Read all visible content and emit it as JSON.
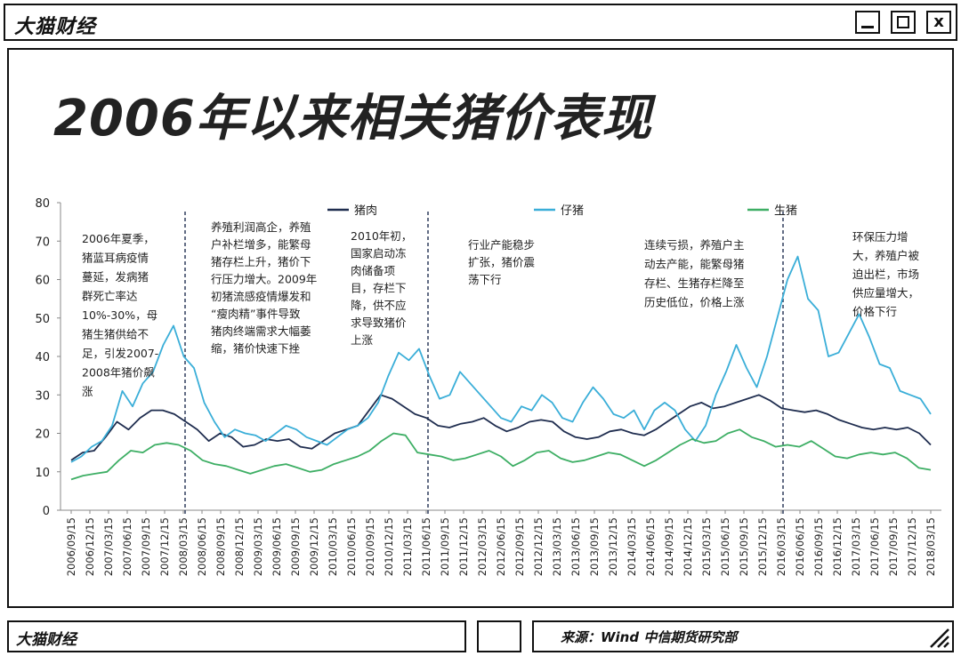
{
  "window": {
    "brand": "大猫财经",
    "buttons": {
      "min": "",
      "max": "",
      "close": "x"
    }
  },
  "footer": {
    "brand": "大猫财经",
    "source": "来源：Wind 中信期货研究部"
  },
  "chart_data": {
    "type": "line",
    "title": "2006年以来相关猪价表现",
    "ylim": [
      0,
      80
    ],
    "yticks": [
      0,
      10,
      20,
      30,
      40,
      50,
      60,
      70,
      80
    ],
    "x_tick_labels": [
      "2006/09/15",
      "2006/12/15",
      "2007/03/15",
      "2007/06/15",
      "2007/09/15",
      "2007/12/15",
      "2008/03/15",
      "2008/06/15",
      "2008/09/15",
      "2008/12/15",
      "2009/03/15",
      "2009/06/15",
      "2009/09/15",
      "2009/12/15",
      "2010/03/15",
      "2010/06/15",
      "2010/09/15",
      "2010/12/15",
      "2011/03/15",
      "2011/06/15",
      "2011/09/15",
      "2011/12/15",
      "2012/03/15",
      "2012/06/15",
      "2012/09/15",
      "2012/12/15",
      "2013/03/15",
      "2013/06/15",
      "2013/09/15",
      "2013/12/15",
      "2014/03/15",
      "2014/06/15",
      "2014/09/15",
      "2014/12/15",
      "2015/03/15",
      "2015/06/15",
      "2015/09/15",
      "2015/12/15",
      "2016/03/15",
      "2016/06/15",
      "2016/09/15",
      "2016/12/15",
      "2017/03/15",
      "2017/06/15",
      "2017/09/15",
      "2017/12/15",
      "2018/03/15"
    ],
    "legend": [
      "猪肉",
      "仔猪",
      "生猪"
    ],
    "series": [
      {
        "name": "猪肉",
        "color": "#1f2d4f",
        "values": [
          [
            0,
            13
          ],
          [
            1,
            15
          ],
          [
            2,
            15.5
          ],
          [
            3,
            19
          ],
          [
            4,
            23
          ],
          [
            5,
            21
          ],
          [
            6,
            24
          ],
          [
            7,
            26
          ],
          [
            8,
            26
          ],
          [
            9,
            25
          ],
          [
            10,
            23
          ],
          [
            11,
            21
          ],
          [
            12,
            18
          ],
          [
            13,
            20
          ],
          [
            14,
            19
          ],
          [
            15,
            16.5
          ],
          [
            16,
            17
          ],
          [
            17,
            18.5
          ],
          [
            18,
            18
          ],
          [
            19,
            18.5
          ],
          [
            20,
            16.5
          ],
          [
            21,
            16
          ],
          [
            22,
            18
          ],
          [
            23,
            20
          ],
          [
            24,
            21
          ],
          [
            25,
            22
          ],
          [
            26,
            26
          ],
          [
            27,
            30
          ],
          [
            28,
            29
          ],
          [
            29,
            27
          ],
          [
            30,
            25
          ],
          [
            31,
            24
          ],
          [
            32,
            22
          ],
          [
            33,
            21.5
          ],
          [
            34,
            22.5
          ],
          [
            35,
            23
          ],
          [
            36,
            24
          ],
          [
            37,
            22
          ],
          [
            38,
            20.5
          ],
          [
            39,
            21.5
          ],
          [
            40,
            23
          ],
          [
            41,
            23.5
          ],
          [
            42,
            23
          ],
          [
            43,
            20.5
          ],
          [
            44,
            19
          ],
          [
            45,
            18.5
          ],
          [
            46,
            19
          ],
          [
            47,
            20.5
          ],
          [
            48,
            21
          ],
          [
            49,
            20
          ],
          [
            50,
            19.5
          ],
          [
            51,
            21
          ],
          [
            52,
            23
          ],
          [
            53,
            25
          ],
          [
            54,
            27
          ],
          [
            55,
            28
          ],
          [
            56,
            26.5
          ],
          [
            57,
            27
          ],
          [
            58,
            28
          ],
          [
            59,
            29
          ],
          [
            60,
            30
          ],
          [
            61,
            28.5
          ],
          [
            62,
            26.5
          ],
          [
            63,
            26
          ],
          [
            64,
            25.5
          ],
          [
            65,
            26
          ],
          [
            66,
            25
          ],
          [
            67,
            23.5
          ],
          [
            68,
            22.5
          ],
          [
            69,
            21.5
          ],
          [
            70,
            21
          ],
          [
            71,
            21.5
          ],
          [
            72,
            21
          ],
          [
            73,
            21.5
          ],
          [
            74,
            20
          ],
          [
            75,
            17
          ]
        ]
      },
      {
        "name": "仔猪",
        "color": "#3aaed8",
        "values": [
          [
            0,
            12.5
          ],
          [
            1,
            14
          ],
          [
            2,
            16.5
          ],
          [
            3,
            18
          ],
          [
            4,
            22
          ],
          [
            5,
            31
          ],
          [
            6,
            27
          ],
          [
            7,
            33
          ],
          [
            8,
            36
          ],
          [
            9,
            43
          ],
          [
            10,
            48
          ],
          [
            11,
            40
          ],
          [
            12,
            37
          ],
          [
            13,
            28
          ],
          [
            14,
            23
          ],
          [
            15,
            19
          ],
          [
            16,
            21
          ],
          [
            17,
            20
          ],
          [
            18,
            19.5
          ],
          [
            19,
            18
          ],
          [
            20,
            20
          ],
          [
            21,
            22
          ],
          [
            22,
            21
          ],
          [
            23,
            19
          ],
          [
            24,
            18
          ],
          [
            25,
            17
          ],
          [
            26,
            19
          ],
          [
            27,
            21
          ],
          [
            28,
            22
          ],
          [
            29,
            24
          ],
          [
            30,
            28
          ],
          [
            31,
            35
          ],
          [
            32,
            41
          ],
          [
            33,
            39
          ],
          [
            34,
            42
          ],
          [
            35,
            35
          ],
          [
            36,
            29
          ],
          [
            37,
            30
          ],
          [
            38,
            36
          ],
          [
            39,
            33
          ],
          [
            40,
            30
          ],
          [
            41,
            27
          ],
          [
            42,
            24
          ],
          [
            43,
            23
          ],
          [
            44,
            27
          ],
          [
            45,
            26
          ],
          [
            46,
            30
          ],
          [
            47,
            28
          ],
          [
            48,
            24
          ],
          [
            49,
            23
          ],
          [
            50,
            28
          ],
          [
            51,
            32
          ],
          [
            52,
            29
          ],
          [
            53,
            25
          ],
          [
            54,
            24
          ],
          [
            55,
            26
          ],
          [
            56,
            21
          ],
          [
            57,
            26
          ],
          [
            58,
            28
          ],
          [
            59,
            26
          ],
          [
            60,
            21
          ],
          [
            61,
            18
          ],
          [
            62,
            22
          ],
          [
            63,
            30
          ],
          [
            64,
            36
          ],
          [
            65,
            43
          ],
          [
            66,
            37
          ],
          [
            67,
            32
          ],
          [
            68,
            40
          ],
          [
            69,
            50
          ],
          [
            70,
            60
          ],
          [
            71,
            66
          ],
          [
            72,
            55
          ],
          [
            73,
            52
          ],
          [
            74,
            40
          ],
          [
            75,
            41
          ],
          [
            76,
            46
          ],
          [
            77,
            51
          ],
          [
            78,
            45
          ],
          [
            79,
            38
          ],
          [
            80,
            37
          ],
          [
            81,
            31
          ],
          [
            82,
            30
          ],
          [
            83,
            29
          ],
          [
            84,
            25
          ]
        ]
      },
      {
        "name": "生猪",
        "color": "#3dae64",
        "values": [
          [
            0,
            8
          ],
          [
            1,
            9
          ],
          [
            2,
            9.5
          ],
          [
            3,
            10
          ],
          [
            4,
            13
          ],
          [
            5,
            15.5
          ],
          [
            6,
            15
          ],
          [
            7,
            17
          ],
          [
            8,
            17.5
          ],
          [
            9,
            17
          ],
          [
            10,
            15.5
          ],
          [
            11,
            13
          ],
          [
            12,
            12
          ],
          [
            13,
            11.5
          ],
          [
            14,
            10.5
          ],
          [
            15,
            9.5
          ],
          [
            16,
            10.5
          ],
          [
            17,
            11.5
          ],
          [
            18,
            12
          ],
          [
            19,
            11
          ],
          [
            20,
            10
          ],
          [
            21,
            10.5
          ],
          [
            22,
            12
          ],
          [
            23,
            13
          ],
          [
            24,
            14
          ],
          [
            25,
            15.5
          ],
          [
            26,
            18
          ],
          [
            27,
            20
          ],
          [
            28,
            19.5
          ],
          [
            29,
            15
          ],
          [
            30,
            14.5
          ],
          [
            31,
            14
          ],
          [
            32,
            13
          ],
          [
            33,
            13.5
          ],
          [
            34,
            14.5
          ],
          [
            35,
            15.5
          ],
          [
            36,
            14
          ],
          [
            37,
            11.5
          ],
          [
            38,
            13
          ],
          [
            39,
            15
          ],
          [
            40,
            15.5
          ],
          [
            41,
            13.5
          ],
          [
            42,
            12.5
          ],
          [
            43,
            13
          ],
          [
            44,
            14
          ],
          [
            45,
            15
          ],
          [
            46,
            14.5
          ],
          [
            47,
            13
          ],
          [
            48,
            11.5
          ],
          [
            49,
            13
          ],
          [
            50,
            15
          ],
          [
            51,
            17
          ],
          [
            52,
            18.5
          ],
          [
            53,
            17.5
          ],
          [
            54,
            18
          ],
          [
            55,
            20
          ],
          [
            56,
            21
          ],
          [
            57,
            19
          ],
          [
            58,
            18
          ],
          [
            59,
            16.5
          ],
          [
            60,
            17
          ],
          [
            61,
            16.5
          ],
          [
            62,
            18
          ],
          [
            63,
            16
          ],
          [
            64,
            14
          ],
          [
            65,
            13.5
          ],
          [
            66,
            14.5
          ],
          [
            67,
            15
          ],
          [
            68,
            14.5
          ],
          [
            69,
            15
          ],
          [
            70,
            13.5
          ],
          [
            71,
            11
          ],
          [
            72,
            10.5
          ]
        ]
      }
    ],
    "vlines": [
      "2008/03/15",
      "2011/06/15",
      "2016/03/15"
    ],
    "annotations": [
      {
        "col": 0,
        "lines": [
          "2006年夏季，",
          "猪蓝耳病疫情",
          "蔓延，发病猪",
          "群死亡率达",
          "10%-30%，母",
          "猪生猪供给不",
          "足，引发2007-",
          "2008年猪价飙",
          "涨"
        ]
      },
      {
        "col": 1,
        "lines": [
          "养殖利润高企，养殖",
          "户补栏增多，能繁母",
          "猪存栏上升，猪价下",
          "行压力增大。2009年",
          "初猪流感疫情爆发和",
          "“瘦肉精”事件导致",
          "猪肉终端需求大幅萎",
          "缩，猪价快速下挫"
        ]
      },
      {
        "col": 2,
        "lines": [
          "2010年初，",
          "国家启动冻",
          "肉储备项",
          "目，存栏下",
          "降，供不应",
          "求导致猪价",
          "上涨"
        ]
      },
      {
        "col": 3,
        "lines": [
          "行业产能稳步",
          "扩张，猪价震",
          "荡下行"
        ]
      },
      {
        "col": 4,
        "lines": [
          "连续亏损，养殖户主",
          "动去产能，能繁母猪",
          "存栏、生猪存栏降至",
          "历史低位，价格上涨"
        ]
      },
      {
        "col": 5,
        "lines": [
          "环保压力增",
          "大，养殖户被",
          "迫出栏，市场",
          "供应量增大，",
          "价格下行"
        ]
      }
    ]
  }
}
